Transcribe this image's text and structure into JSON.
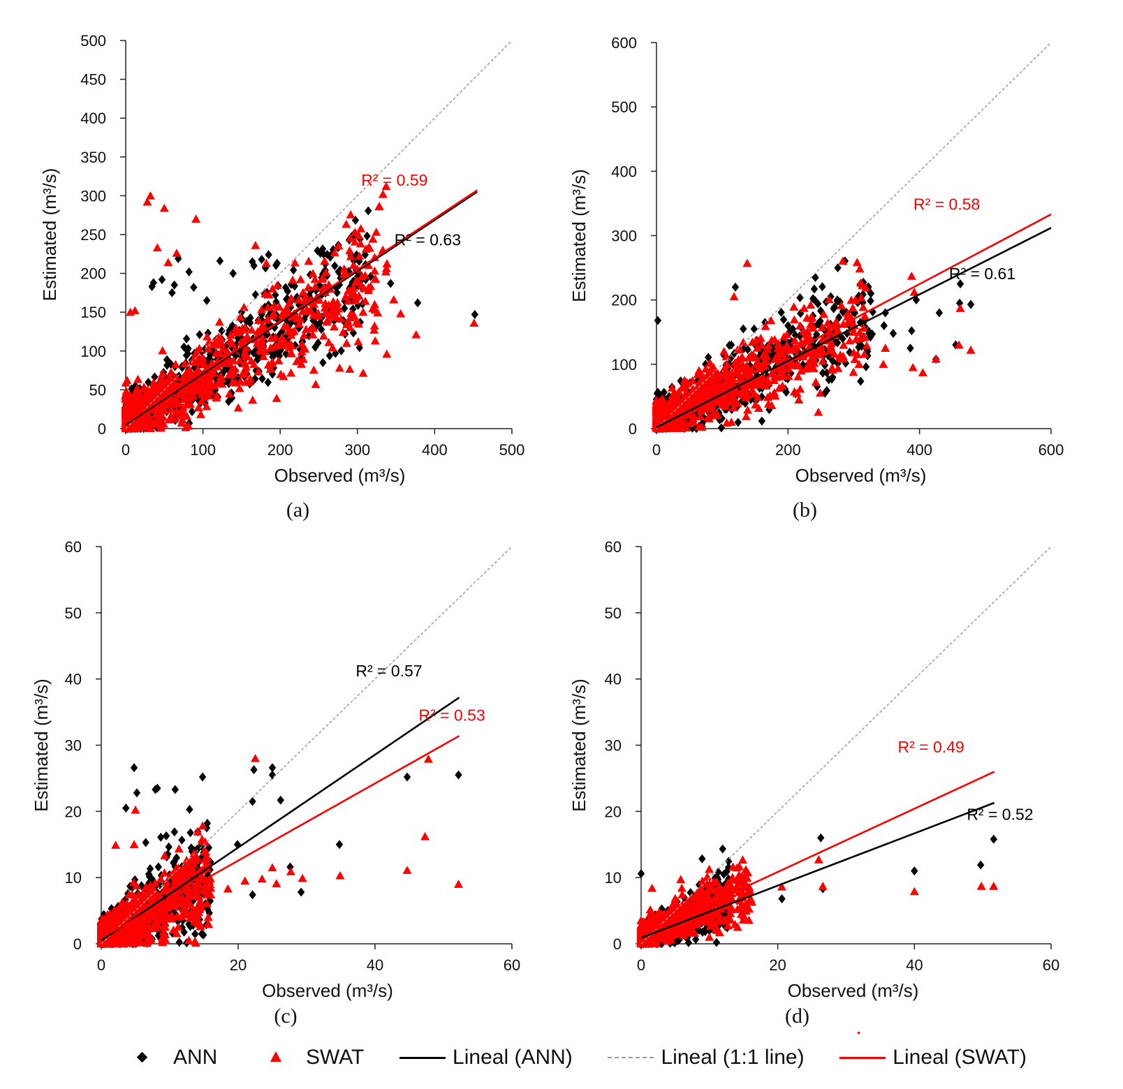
{
  "colors": {
    "ann": "#000000",
    "swat": "#ff0000",
    "one_to_one": "#9a9a9a"
  },
  "legend": {
    "ann": "ANN",
    "swat": "SWAT",
    "lineal_ann": "Lineal (ANN)",
    "lineal_1_1": "Lineal (1:1 line)",
    "lineal_swat": "Lineal (SWAT)"
  },
  "chart_data": [
    {
      "type": "scatter",
      "panel_label": "(a)",
      "xlabel": "Observed (m³/s)",
      "ylabel": "Estimated (m³/s)",
      "xlim": [
        0,
        500
      ],
      "ylim": [
        0,
        500
      ],
      "xticks": [
        0,
        100,
        200,
        300,
        400,
        500
      ],
      "yticks": [
        0,
        50,
        100,
        150,
        200,
        250,
        300,
        350,
        400,
        450,
        500
      ],
      "series": [
        {
          "name": "ANN",
          "marker": "diamond",
          "color": "#000000",
          "points": [
            [
              452,
              147
            ],
            [
              378,
              162
            ],
            [
              343,
              187
            ],
            [
              310,
              224
            ],
            [
              289,
              200
            ],
            [
              278,
              194
            ],
            [
              255,
              199
            ],
            [
              196,
              213
            ],
            [
              185,
              224
            ],
            [
              181,
              207
            ],
            [
              176,
              218
            ],
            [
              166,
              210
            ],
            [
              164,
              215
            ],
            [
              139,
              200
            ],
            [
              122,
              216
            ],
            [
              88,
              182
            ],
            [
              82,
              202
            ],
            [
              68,
              219
            ],
            [
              63,
              185
            ],
            [
              60,
              175
            ],
            [
              36,
              188
            ],
            [
              34,
              183
            ],
            [
              47,
              192
            ],
            [
              105,
              165
            ],
            [
              150,
              150
            ]
          ],
          "cloud": {
            "max_x": 320,
            "n": 700,
            "slope": 0.62,
            "intercept": 8,
            "spread": 28,
            "fraction": 0.35
          }
        },
        {
          "name": "SWAT",
          "marker": "triangle",
          "color": "#ff0000",
          "points": [
            [
              32,
              300
            ],
            [
              28,
              292
            ],
            [
              50,
              284
            ],
            [
              91,
              270
            ],
            [
              41,
              233
            ],
            [
              66,
              226
            ],
            [
              168,
              236
            ],
            [
              55,
              214
            ],
            [
              182,
              213
            ],
            [
              6,
              150
            ],
            [
              12,
              152
            ],
            [
              451,
              136
            ],
            [
              376,
              121
            ],
            [
              338,
              96
            ],
            [
              347,
              166
            ],
            [
              323,
              113
            ],
            [
              301,
              112
            ],
            [
              286,
              110
            ],
            [
              277,
              78
            ],
            [
              246,
              57
            ],
            [
              296,
              145
            ],
            [
              356,
              148
            ]
          ],
          "cloud": {
            "max_x": 340,
            "n": 800,
            "slope": 0.58,
            "intercept": 10,
            "spread": 30,
            "fraction": 0.35
          }
        }
      ],
      "fits": [
        {
          "name": "Lineal (ANN)",
          "color": "#000000",
          "x": [
            0,
            455
          ],
          "y": [
            5,
            305
          ]
        },
        {
          "name": "Lineal (SWAT)",
          "color": "#ff0000",
          "x": [
            0,
            455
          ],
          "y": [
            7,
            307
          ]
        },
        {
          "name": "Lineal (1:1 line)",
          "color": "#9a9a9a",
          "x": [
            0,
            500
          ],
          "y": [
            0,
            500
          ]
        }
      ],
      "annotations": [
        {
          "text": "R² = 0.59",
          "color": "#ff0000",
          "x": 391,
          "y": 313
        },
        {
          "text": "R² = 0.63",
          "color": "#000000",
          "x": 434,
          "y": 236
        }
      ]
    },
    {
      "type": "scatter",
      "panel_label": "(b)",
      "xlabel": "Observed (m³/s)",
      "ylabel": "Estimated (m³/s)",
      "xlim": [
        0,
        600
      ],
      "ylim": [
        0,
        600
      ],
      "xticks": [
        0,
        200,
        400,
        600
      ],
      "yticks": [
        0,
        100,
        200,
        300,
        400,
        500,
        600
      ],
      "series": [
        {
          "name": "ANN",
          "marker": "diamond",
          "color": "#000000",
          "points": [
            [
              478,
              193
            ],
            [
              462,
              225
            ],
            [
              461,
              195
            ],
            [
              430,
              180
            ],
            [
              395,
              200
            ],
            [
              388,
              152
            ],
            [
              386,
              125
            ],
            [
              348,
              180
            ],
            [
              346,
              160
            ],
            [
              310,
              165
            ],
            [
              275,
              200
            ],
            [
              265,
              205
            ],
            [
              240,
              217
            ],
            [
              238,
              202
            ],
            [
              200,
              160
            ],
            [
              165,
              165
            ],
            [
              132,
              155
            ],
            [
              120,
              220
            ],
            [
              2,
              168
            ],
            [
              455,
              130
            ],
            [
              425,
              108
            ],
            [
              360,
              148
            ]
          ],
          "cloud": {
            "max_x": 330,
            "n": 700,
            "slope": 0.5,
            "intercept": 10,
            "spread": 30,
            "fraction": 0.35
          }
        },
        {
          "name": "SWAT",
          "marker": "triangle",
          "color": "#ff0000",
          "points": [
            [
              138,
              257
            ],
            [
              388,
              237
            ],
            [
              118,
              205
            ],
            [
              392,
              212
            ],
            [
              462,
              187
            ],
            [
              478,
              122
            ],
            [
              460,
              130
            ],
            [
              425,
              108
            ],
            [
              405,
              87
            ],
            [
              390,
              95
            ],
            [
              348,
              125
            ],
            [
              345,
              100
            ],
            [
              310,
              140
            ],
            [
              300,
              118
            ],
            [
              230,
              98
            ],
            [
              190,
              100
            ],
            [
              160,
              130
            ],
            [
              140,
              110
            ]
          ],
          "cloud": {
            "max_x": 320,
            "n": 800,
            "slope": 0.5,
            "intercept": 12,
            "spread": 28,
            "fraction": 0.35
          }
        }
      ],
      "fits": [
        {
          "name": "Lineal (ANN)",
          "color": "#000000",
          "x": [
            0,
            600
          ],
          "y": [
            2,
            312
          ]
        },
        {
          "name": "Lineal (SWAT)",
          "color": "#ff0000",
          "x": [
            0,
            600
          ],
          "y": [
            8,
            333
          ]
        },
        {
          "name": "Lineal (1:1 line)",
          "color": "#9a9a9a",
          "x": [
            0,
            600
          ],
          "y": [
            0,
            600
          ]
        }
      ],
      "annotations": [
        {
          "text": "R² = 0.58",
          "color": "#ff0000",
          "x": 492,
          "y": 340
        },
        {
          "text": "R² = 0.61",
          "color": "#000000",
          "x": 546,
          "y": 232
        }
      ]
    },
    {
      "type": "scatter",
      "panel_label": "(c)",
      "xlabel": "Observed (m³/s)",
      "ylabel": "Estimated (m³/s)",
      "xlim": [
        0,
        60
      ],
      "ylim": [
        0,
        60
      ],
      "xticks": [
        0,
        20,
        40,
        60
      ],
      "yticks": [
        0,
        10,
        20,
        30,
        40,
        50,
        60
      ],
      "series": [
        {
          "name": "ANN",
          "marker": "diamond",
          "color": "#000000",
          "points": [
            [
              4.8,
              26.6
            ],
            [
              25.0,
              26.6
            ],
            [
              22.3,
              26.3
            ],
            [
              14.8,
              25.2
            ],
            [
              25.0,
              25.5
            ],
            [
              52.2,
              25.5
            ],
            [
              44.7,
              25.2
            ],
            [
              7.9,
              23.3
            ],
            [
              8.2,
              23.5
            ],
            [
              10.8,
              23.3
            ],
            [
              5.2,
              22.8
            ],
            [
              26.2,
              21.7
            ],
            [
              22.1,
              21.5
            ],
            [
              3.6,
              20.5
            ],
            [
              12.9,
              20.3
            ],
            [
              15.4,
              17.5
            ],
            [
              15.5,
              18.2
            ],
            [
              10.7,
              16.9
            ],
            [
              9.5,
              16.3
            ],
            [
              8.7,
              16.1
            ],
            [
              34.8,
              15.0
            ],
            [
              19.9,
              15.0
            ],
            [
              6.5,
              15.3
            ],
            [
              14.0,
              14.3
            ],
            [
              27.6,
              11.6
            ],
            [
              29.2,
              7.8
            ],
            [
              22.1,
              7.4
            ],
            [
              14.7,
              1.5
            ],
            [
              11.0,
              13.0
            ],
            [
              12.5,
              11.0
            ]
          ],
          "cloud": {
            "max_x": 16,
            "n": 700,
            "slope": 0.6,
            "intercept": 0.5,
            "spread": 2.6,
            "fraction": 0.35
          }
        },
        {
          "name": "SWAT",
          "marker": "triangle",
          "color": "#ff0000",
          "points": [
            [
              22.5,
              28.0
            ],
            [
              47.8,
              27.9
            ],
            [
              5.0,
              20.2
            ],
            [
              47.3,
              16.2
            ],
            [
              2.1,
              14.9
            ],
            [
              4.8,
              15.0
            ],
            [
              44.7,
              11.1
            ],
            [
              52.2,
              9.0
            ],
            [
              34.9,
              10.3
            ],
            [
              25.0,
              11.5
            ],
            [
              27.7,
              10.9
            ],
            [
              29.4,
              9.9
            ],
            [
              23.5,
              9.8
            ],
            [
              25.6,
              9.1
            ],
            [
              21.0,
              9.5
            ],
            [
              18.5,
              8.3
            ],
            [
              15.8,
              9.5
            ],
            [
              14.5,
              2.6
            ]
          ],
          "cloud": {
            "max_x": 16,
            "n": 800,
            "slope": 0.55,
            "intercept": 0.7,
            "spread": 2.4,
            "fraction": 0.35
          }
        }
      ],
      "fits": [
        {
          "name": "Lineal (ANN)",
          "color": "#000000",
          "x": [
            0,
            52.3
          ],
          "y": [
            0.5,
            37.2
          ]
        },
        {
          "name": "Lineal (SWAT)",
          "color": "#ff0000",
          "x": [
            0,
            52.3
          ],
          "y": [
            0.9,
            31.4
          ]
        },
        {
          "name": "Lineal (1:1 line)",
          "color": "#9a9a9a",
          "x": [
            0,
            60
          ],
          "y": [
            0,
            60
          ]
        }
      ],
      "annotations": [
        {
          "text": "R² = 0.57",
          "color": "#000000",
          "x": 46.9,
          "y": 40.4
        },
        {
          "text": "R² = 0.53",
          "color": "#ff0000",
          "x": 56.1,
          "y": 33.7
        }
      ]
    },
    {
      "type": "scatter",
      "panel_label": "(d)",
      "xlabel": "Observed (m³/s)",
      "ylabel": "Estimated (m³/s)",
      "xlim": [
        0,
        60
      ],
      "ylim": [
        0,
        60
      ],
      "xticks": [
        0,
        20,
        40,
        60
      ],
      "yticks": [
        0,
        10,
        20,
        30,
        40,
        50,
        60
      ],
      "series": [
        {
          "name": "ANN",
          "marker": "diamond",
          "color": "#000000",
          "points": [
            [
              26.3,
              16.0
            ],
            [
              51.6,
              15.8
            ],
            [
              49.7,
              11.9
            ],
            [
              40.0,
              11.0
            ],
            [
              0.0,
              10.6
            ],
            [
              20.6,
              6.8
            ],
            [
              26.6,
              8.3
            ],
            [
              12.8,
              9.8
            ],
            [
              8.5,
              8.9
            ],
            [
              10.0,
              2.0
            ]
          ],
          "cloud": {
            "max_x": 13,
            "n": 600,
            "slope": 0.42,
            "intercept": 1.0,
            "spread": 1.8,
            "fraction": 0.35
          }
        },
        {
          "name": "SWAT",
          "marker": "triangle",
          "color": "#ff0000",
          "points": [
            [
              26.0,
              12.7
            ],
            [
              26.6,
              8.7
            ],
            [
              51.6,
              8.7
            ],
            [
              49.8,
              8.7
            ],
            [
              40.0,
              7.9
            ],
            [
              20.6,
              8.6
            ],
            [
              16.2,
              6.3
            ],
            [
              10.0,
              1.0
            ],
            [
              1.6,
              8.4
            ]
          ],
          "cloud": {
            "max_x": 16,
            "n": 700,
            "slope": 0.48,
            "intercept": 1.2,
            "spread": 1.7,
            "fraction": 0.35
          }
        }
      ],
      "fits": [
        {
          "name": "Lineal (ANN)",
          "color": "#000000",
          "x": [
            0,
            51.7
          ],
          "y": [
            0.9,
            21.3
          ]
        },
        {
          "name": "Lineal (SWAT)",
          "color": "#ff0000",
          "x": [
            0,
            51.7
          ],
          "y": [
            1.3,
            26.0
          ]
        },
        {
          "name": "Lineal (1:1 line)",
          "color": "#9a9a9a",
          "x": [
            0,
            60
          ],
          "y": [
            0,
            60
          ]
        }
      ],
      "annotations": [
        {
          "text": "R² = 0.49",
          "color": "#ff0000",
          "x": 47.3,
          "y": 28.9
        },
        {
          "text": "R² = 0.52",
          "color": "#000000",
          "x": 57.4,
          "y": 18.7
        }
      ]
    }
  ]
}
